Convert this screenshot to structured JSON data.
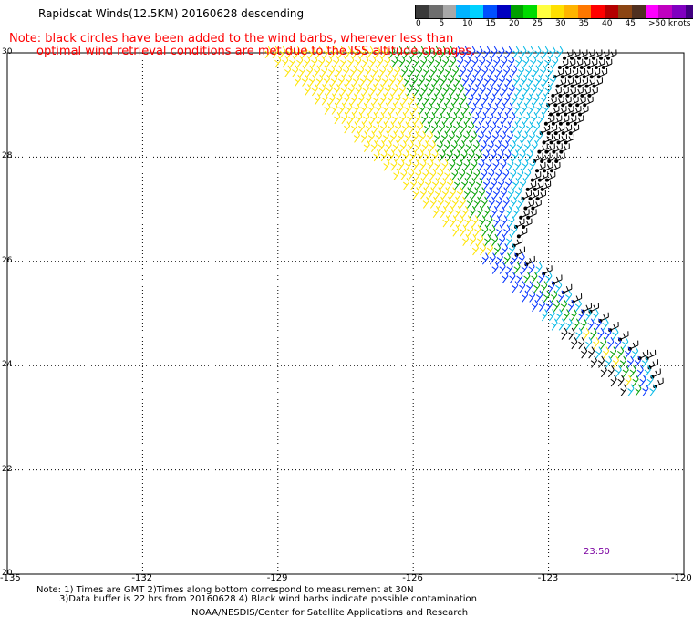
{
  "title": "Rapidscat Winds(12.5KM) 20160628 descending",
  "note": {
    "line1": "Note: black circles have been added to the wind barbs, wherever less than",
    "line2": "optimal wind retrieval conditions are met due to the ISS altitude changes."
  },
  "legend": {
    "colors": [
      "#3a3a3a",
      "#6e6e6e",
      "#a8a8a8",
      "#00b4ff",
      "#00d2ff",
      "#0050ff",
      "#0000c0",
      "#00a000",
      "#00dc00",
      "#ffff40",
      "#ffe000",
      "#ffb400",
      "#ff7800",
      "#ff0000",
      "#b40000",
      "#8b4513",
      "#503020",
      "#ff00ff",
      "#c000c0",
      "#8000c0",
      "#400080"
    ],
    "labels": [
      "0",
      "5",
      "10",
      "15",
      "20",
      "25",
      "30",
      "35",
      "40",
      "45",
      ">50 knots"
    ]
  },
  "map": {
    "lon_ticks": [
      "-135",
      "-132",
      "-129",
      "-126",
      "-123",
      "-120"
    ],
    "lat_ticks": [
      "30",
      "28",
      "26",
      "24",
      "22",
      "20"
    ],
    "lon_range": [
      -135,
      -120
    ],
    "lat_range": [
      20,
      30
    ],
    "grid": "dotted"
  },
  "swath": {
    "knot_ranges": [
      {
        "name": "yellow",
        "color": "#ffe400",
        "min": 20,
        "max": 25
      },
      {
        "name": "green",
        "color": "#00a000",
        "min": 15,
        "max": 20
      },
      {
        "name": "blue",
        "color": "#0030ff",
        "min": 10,
        "max": 15
      },
      {
        "name": "cyan",
        "color": "#00b8e6",
        "min": 5,
        "max": 10
      },
      {
        "name": "contaminated",
        "color": "#000000",
        "note": "black barbs"
      }
    ]
  },
  "timestamp": "23:50",
  "footnote": {
    "line1": "Note: 1) Times are GMT 2)Times along bottom correspond to measurement at 30N",
    "line2": "3)Data buffer is 22 hrs from 20160628 4) Black wind barbs indicate possible contamination"
  },
  "credit": "NOAA/NESDIS/Center for Satellite Applications and Research"
}
